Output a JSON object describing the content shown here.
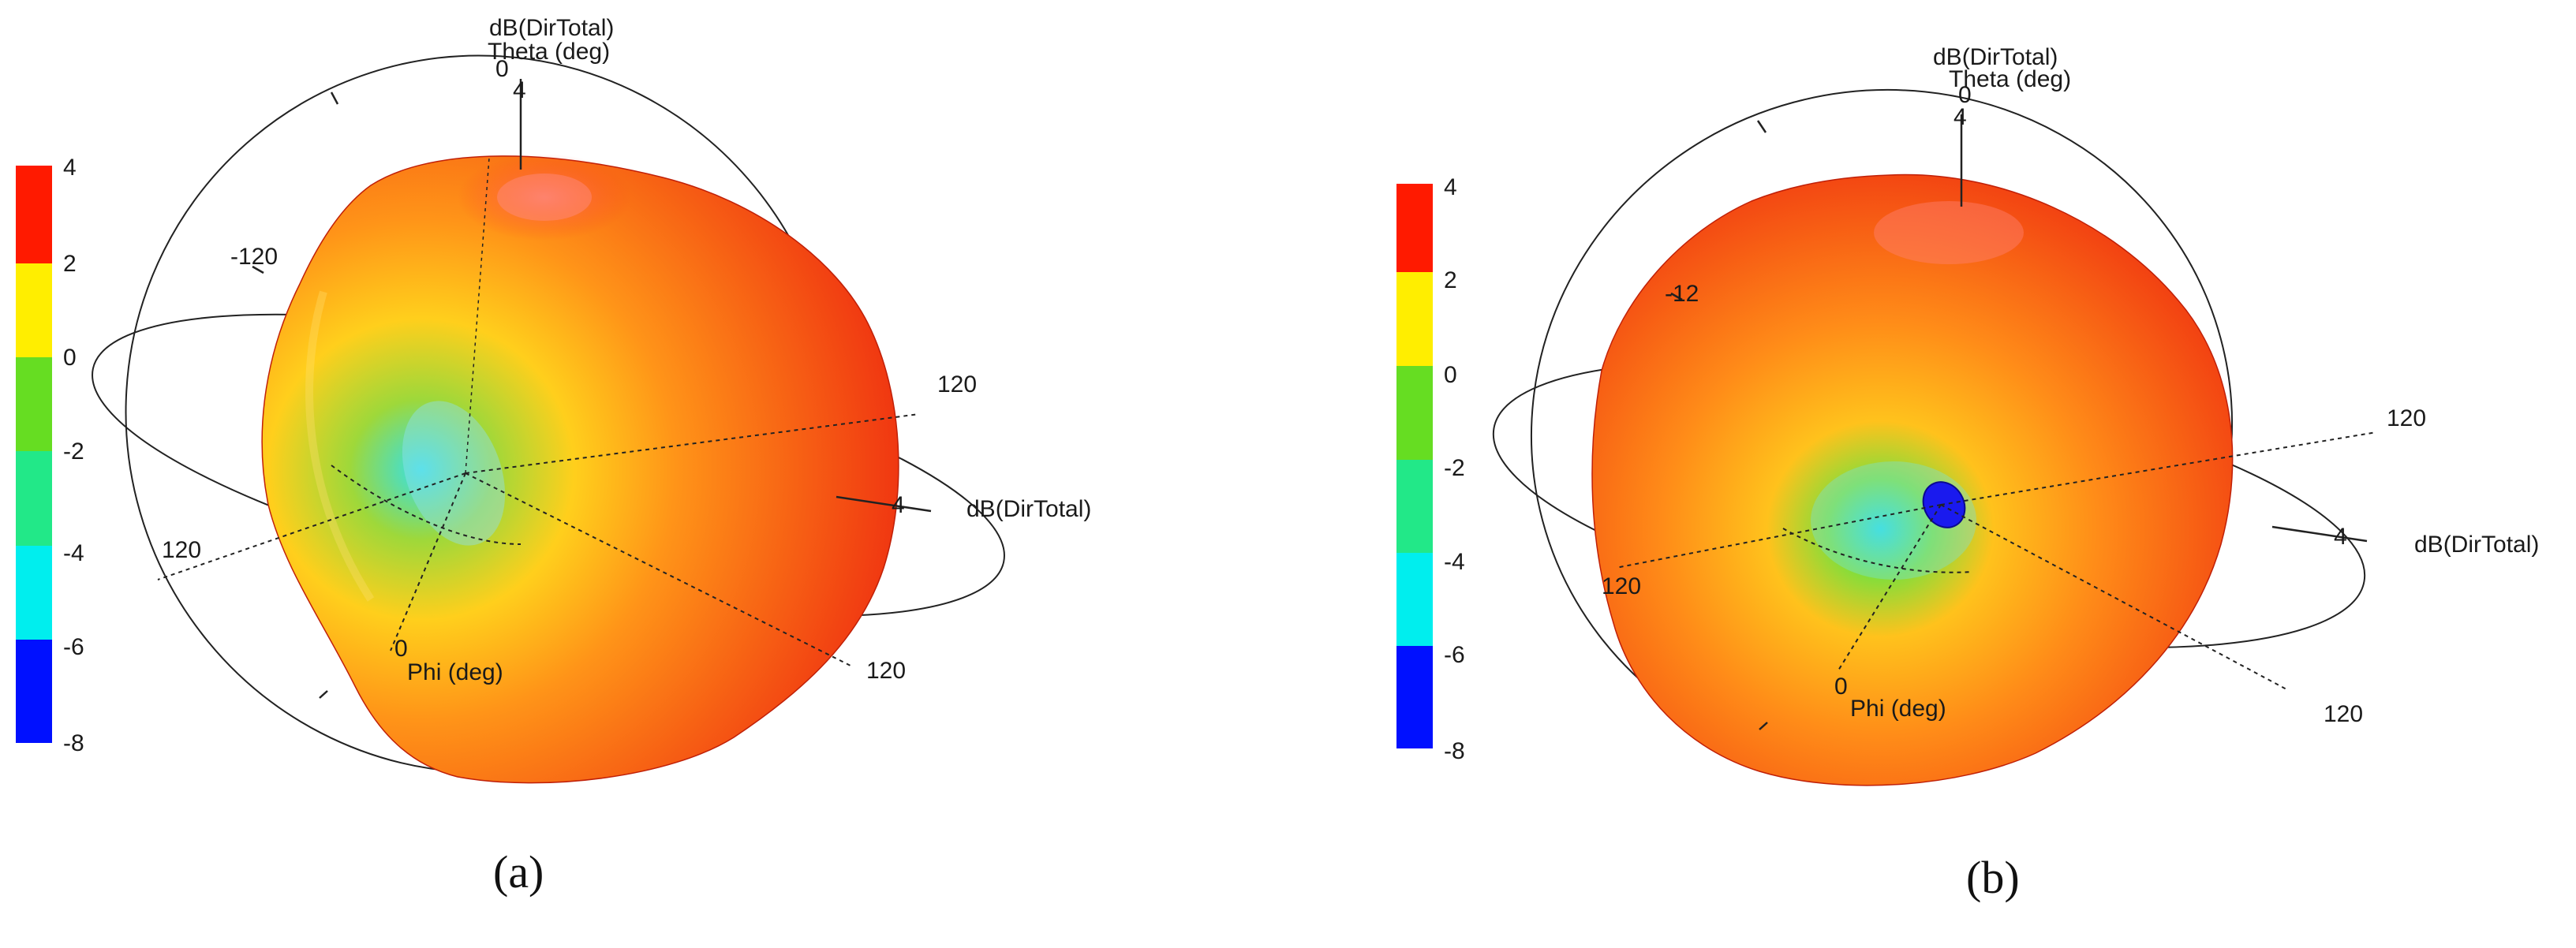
{
  "figure": {
    "panels": [
      {
        "id": "a",
        "caption": "(a)",
        "colorbar_ticks": [
          "4",
          "2",
          "0",
          "-2",
          "-4",
          "-6",
          "-8"
        ],
        "colorbar_colors": [
          "#ff1a00",
          "#ffee00",
          "#66dd22",
          "#22e888",
          "#00eeee",
          "#0010ff"
        ],
        "theta_axis_title": "Theta (deg)",
        "z_axis_title": "dB(DirTotal)",
        "theta_zero_label": "0",
        "theta_top_label": "4",
        "phi_axis_title": "Phi (deg)",
        "phi_zero_label": "0",
        "label_minus_120": "-120",
        "label_120_left": "120",
        "label_120_right": "120",
        "label_120_bottom": "120",
        "radial_label": "4",
        "side_axis_title": "dB(DirTotal)",
        "pattern_colors": {
          "outer": "#ee2a10",
          "mid": "#ffae18",
          "inner": "#9ed83a",
          "core": "#36e0e6"
        }
      },
      {
        "id": "b",
        "caption": "(b)",
        "colorbar_ticks": [
          "4",
          "2",
          "0",
          "-2",
          "-4",
          "-6",
          "-8"
        ],
        "colorbar_colors": [
          "#ff1a00",
          "#ffee00",
          "#66dd22",
          "#22e888",
          "#00eeee",
          "#0010ff"
        ],
        "theta_axis_title": "Theta (deg)",
        "z_axis_title": "dB(DirTotal)",
        "theta_zero_label": "0",
        "theta_top_label": "4",
        "phi_axis_title": "Phi (deg)",
        "phi_zero_label": "0",
        "label_minus_120": "-12",
        "label_120_left": "120",
        "label_120_right": "120",
        "label_120_bottom": "120",
        "radial_label": "4",
        "side_axis_title": "dB(DirTotal)",
        "pattern_colors": {
          "outer": "#ee2a10",
          "mid": "#ffa51a",
          "inner": "#86dd3a",
          "core": "#30dcd8",
          "null": "#1a1aee"
        }
      }
    ]
  }
}
